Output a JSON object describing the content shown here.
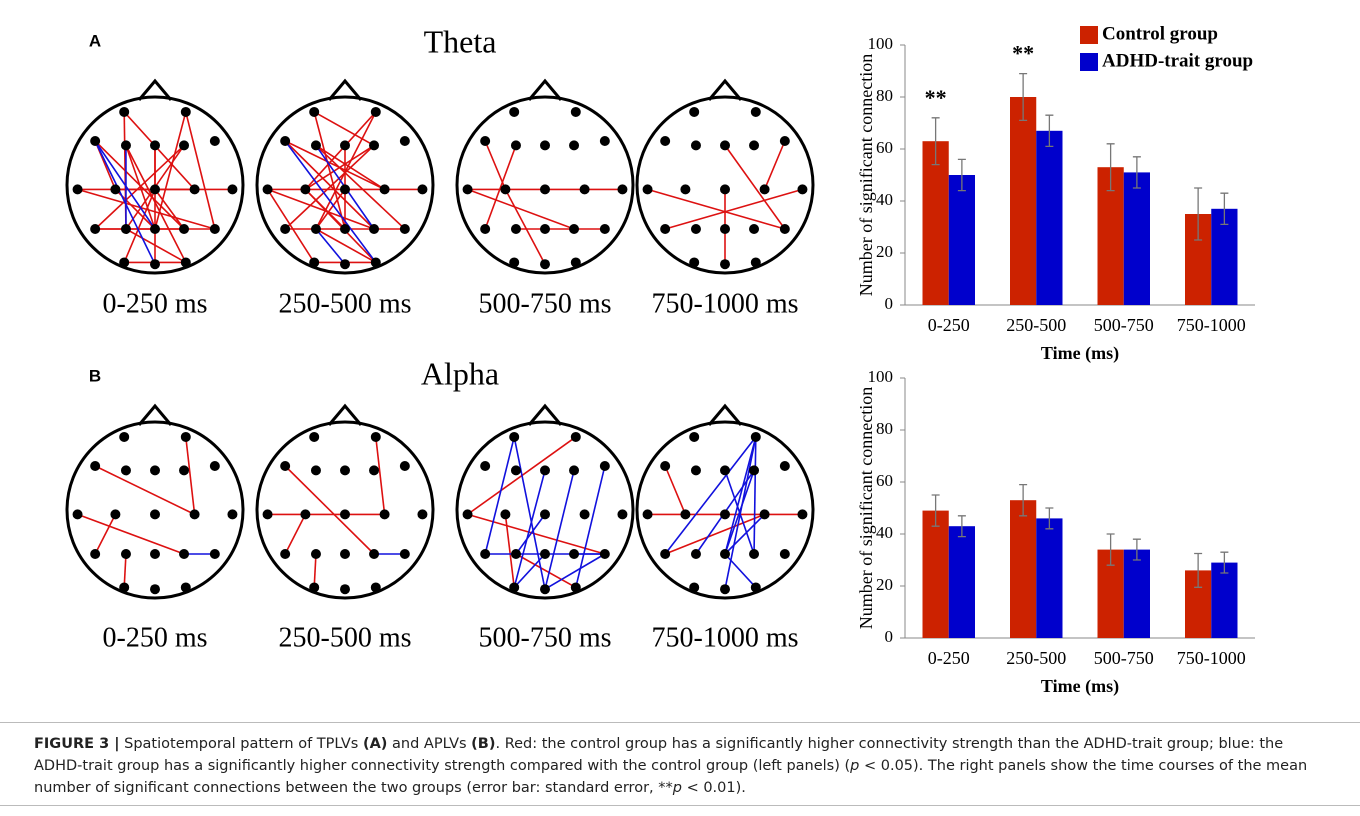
{
  "head_maps": [
    {
      "panel": "A",
      "title": "Theta",
      "labels": [
        "0-250 ms",
        "250-500 ms",
        "500-750 ms",
        "750-1000 ms"
      ]
    },
    {
      "panel": "B",
      "title": "Alpha",
      "labels": [
        "0-250 ms",
        "250-500 ms",
        "500-750 ms",
        "750-1000 ms"
      ]
    }
  ],
  "chart_data": [
    {
      "type": "bar",
      "ylabel": "Number of significant connection",
      "xlabel": "Time (ms)",
      "categories": [
        "0-250",
        "250-500",
        "500-750",
        "750-1000"
      ],
      "annotations": [
        "**",
        "**",
        null,
        null
      ],
      "series": [
        {
          "name": "Control group",
          "color": "#cc2200",
          "values": [
            63,
            80,
            53,
            35
          ],
          "errors": [
            9,
            9,
            9,
            10
          ]
        },
        {
          "name": "ADHD-trait group",
          "color": "#0000cc",
          "values": [
            50,
            67,
            51,
            37
          ],
          "errors": [
            6,
            6,
            6,
            6
          ]
        }
      ],
      "ylim": [
        0,
        100
      ],
      "yticks": [
        0,
        20,
        40,
        60,
        80,
        100
      ],
      "legend": "top-right"
    },
    {
      "type": "bar",
      "ylabel": "Number of significant connection",
      "xlabel": "Time (ms)",
      "categories": [
        "0-250",
        "250-500",
        "500-750",
        "750-1000"
      ],
      "series": [
        {
          "color": "#cc2200",
          "values": [
            49,
            53,
            34,
            26
          ],
          "errors": [
            6,
            6,
            6,
            6.5
          ]
        },
        {
          "color": "#0000cc",
          "values": [
            43,
            46,
            34,
            29
          ],
          "errors": [
            4,
            4,
            4,
            4
          ]
        }
      ],
      "ylim": [
        0,
        100
      ],
      "yticks": [
        0,
        20,
        40,
        60,
        80,
        100
      ]
    }
  ],
  "caption": [
    "FIGURE 3 |",
    " Spatiotemporal pattern of TPLVs ",
    "(A)",
    " and APLVs ",
    "(B)",
    ". Red: the control group has a significantly higher connectivity strength than the ADHD-trait group; blue: the ADHD-trait group has a significantly higher connectivity strength compared with the control group (left panels) (",
    "p",
    " < 0.05). The right panels show the time courses of the mean number of significant connections between the two groups (error bar: standard error, **",
    "p",
    " < 0.01)."
  ]
}
